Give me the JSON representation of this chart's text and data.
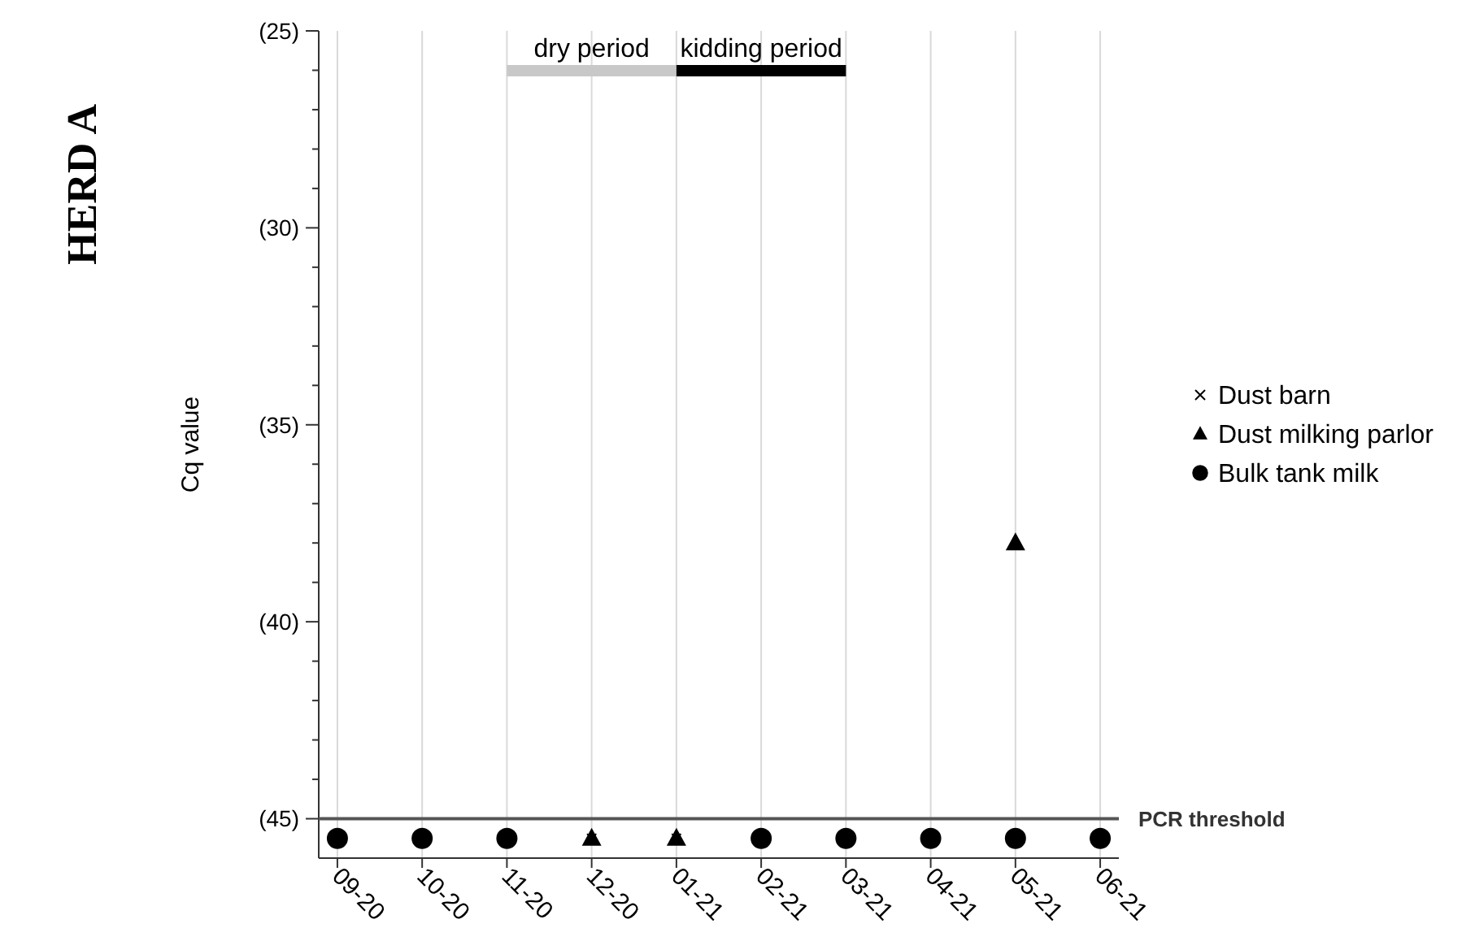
{
  "chart_data": {
    "type": "scatter",
    "title": "HERD A",
    "ylabel": "Cq value",
    "categories": [
      "09-20",
      "10-20",
      "11-20",
      "12-20",
      "01-21",
      "02-21",
      "03-21",
      "04-21",
      "05-21",
      "06-21"
    ],
    "series": [
      {
        "name": "Dust barn",
        "color": "#000000",
        "marker": "cross",
        "values": [
          null,
          null,
          null,
          45.5,
          45.5,
          null,
          null,
          null,
          null,
          null
        ]
      },
      {
        "name": "Dust milking parlor",
        "color": "#000000",
        "marker": "triangle",
        "values": [
          null,
          null,
          null,
          45.5,
          45.5,
          null,
          null,
          null,
          38,
          null
        ]
      },
      {
        "name": "Bulk tank milk",
        "color": "#000000",
        "marker": "circle",
        "values": [
          45.5,
          45.5,
          45.5,
          null,
          null,
          45.5,
          45.5,
          45.5,
          45.5,
          45.5
        ]
      }
    ],
    "ylim": [
      46,
      25
    ],
    "yticks": [
      {
        "value": 25,
        "label": "(25)"
      },
      {
        "value": 26,
        "label": null
      },
      {
        "value": 27,
        "label": null
      },
      {
        "value": 28,
        "label": null
      },
      {
        "value": 29,
        "label": null
      },
      {
        "value": 30,
        "label": "(30)"
      },
      {
        "value": 31,
        "label": null
      },
      {
        "value": 32,
        "label": null
      },
      {
        "value": 33,
        "label": null
      },
      {
        "value": 34,
        "label": null
      },
      {
        "value": 35,
        "label": "(35)"
      },
      {
        "value": 36,
        "label": null
      },
      {
        "value": 37,
        "label": null
      },
      {
        "value": 38,
        "label": null
      },
      {
        "value": 39,
        "label": null
      },
      {
        "value": 40,
        "label": "(40)"
      },
      {
        "value": 41,
        "label": null
      },
      {
        "value": 42,
        "label": null
      },
      {
        "value": 43,
        "label": null
      },
      {
        "value": 44,
        "label": null
      },
      {
        "value": 45,
        "label": "(45)"
      }
    ],
    "ref_lines": [
      {
        "axis": "y",
        "value": 45,
        "label": "PCR threshold",
        "color": "#555555"
      }
    ],
    "annotations": [
      "dry period",
      "kidding period"
    ],
    "grid": "x",
    "legend": "right"
  }
}
